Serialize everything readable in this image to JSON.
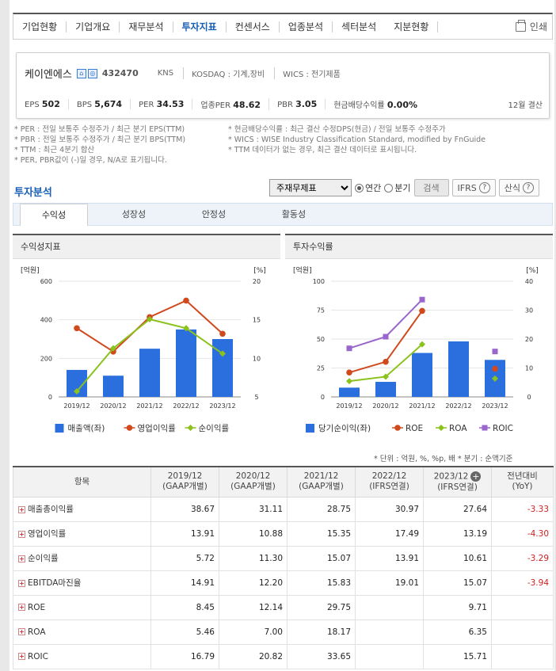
{
  "nav": {
    "items": [
      "기업현황",
      "기업개요",
      "재무분석",
      "투자지표",
      "컨센서스",
      "업종분석",
      "섹터분석",
      "지분현황"
    ],
    "active_index": 3,
    "print_label": "인쇄"
  },
  "company": {
    "name": "케이엔에스",
    "code": "432470",
    "ticker": "KNS",
    "market": "KOSDAQ : 기계,장비",
    "wics": "WICS : 전기제품",
    "metrics": [
      {
        "label": "EPS",
        "value": "502"
      },
      {
        "label": "BPS",
        "value": "5,674"
      },
      {
        "label": "PER",
        "value": "34.53"
      },
      {
        "label": "업종PER",
        "value": "48.62"
      },
      {
        "label": "PBR",
        "value": "3.05"
      },
      {
        "label": "현금배당수익률",
        "value": "0.00%"
      }
    ],
    "settle": "12월 결산"
  },
  "notes": {
    "left": [
      "* PER : 전일 보통주 수정주가 / 최근 분기 EPS(TTM)",
      "* PBR : 전일 보통주 수정주가 / 최근 분기 BPS(TTM)",
      "* TTM : 최근 4분기 합산",
      "* PER, PBR값이 (-)일 경우, N/A로 표기됩니다."
    ],
    "right": [
      "* 현금배당수익률 : 최근 결산 수정DPS(현금) / 전일 보통주 수정주가",
      "* WICS : WISE Industry Classification Standard, modified by FnGuide",
      "* TTM 데이터가 없는 경우, 최근 결산 데이터로 표시됩니다."
    ]
  },
  "section": {
    "title": "투자분석",
    "select_value": "주재무제표",
    "radio_annual": "연간",
    "radio_quarter": "분기",
    "search_btn": "검색",
    "ifrs_btn": "IFRS",
    "formula_btn": "산식"
  },
  "tabs": [
    "수익성",
    "성장성",
    "안정성",
    "활동성"
  ],
  "chart1": {
    "title": "수익성지표",
    "left_unit": "[억원]",
    "right_unit": "[%]",
    "legend": [
      "매출액(좌)",
      "영업이익률",
      "순이익률"
    ]
  },
  "chart2": {
    "title": "투자수익률",
    "left_unit": "[억원]",
    "right_unit": "[%]",
    "legend": [
      "당기순이익(좌)",
      "ROE",
      "ROA",
      "ROIC"
    ]
  },
  "chart_data": [
    {
      "type": "bar",
      "title": "수익성지표",
      "categories": [
        "2019/12",
        "2020/12",
        "2021/12",
        "2022/12",
        "2023/12"
      ],
      "left_ylim": [
        0,
        600
      ],
      "left_ticks": [
        "0",
        "200",
        "400",
        "600"
      ],
      "right_ylim": [
        5,
        20
      ],
      "right_ticks": [
        "5",
        "10",
        "15",
        "20"
      ],
      "series": [
        {
          "name": "매출액(좌)",
          "kind": "bar",
          "axis": "left",
          "color": "#2b6fde",
          "values": [
            140,
            110,
            250,
            350,
            300
          ]
        },
        {
          "name": "영업이익률",
          "kind": "line",
          "axis": "right",
          "color": "#d04a1e",
          "values": [
            13.91,
            10.88,
            15.35,
            17.49,
            13.19
          ]
        },
        {
          "name": "순이익률",
          "kind": "line",
          "axis": "right",
          "color": "#8bc21c",
          "values": [
            5.72,
            11.3,
            15.07,
            13.91,
            10.61
          ]
        }
      ]
    },
    {
      "type": "bar",
      "title": "투자수익률",
      "categories": [
        "2019/12",
        "2020/12",
        "2021/12",
        "2022/12",
        "2023/12"
      ],
      "left_ylim": [
        0,
        100
      ],
      "left_ticks": [
        "0",
        "25",
        "50",
        "75",
        "100"
      ],
      "right_ylim": [
        0,
        40
      ],
      "right_ticks": [
        "0",
        "10",
        "20",
        "30",
        "40"
      ],
      "series": [
        {
          "name": "당기순이익(좌)",
          "kind": "bar",
          "axis": "left",
          "color": "#2b6fde",
          "values": [
            8,
            13,
            38,
            48,
            32
          ]
        },
        {
          "name": "ROE",
          "kind": "line",
          "axis": "right",
          "color": "#d04a1e",
          "values": [
            8.45,
            12.14,
            29.75,
            null,
            9.71
          ]
        },
        {
          "name": "ROA",
          "kind": "line",
          "axis": "right",
          "color": "#8bc21c",
          "values": [
            5.46,
            7.0,
            18.17,
            null,
            6.35
          ]
        },
        {
          "name": "ROIC",
          "kind": "line",
          "axis": "right",
          "color": "#9966cc",
          "values": [
            16.79,
            20.82,
            33.65,
            null,
            15.71
          ]
        }
      ]
    }
  ],
  "units_note": "* 단위 : 억원, %, %p, 배        * 분기 : 순액기준",
  "table": {
    "headers": [
      {
        "l1": "항목",
        "l2": ""
      },
      {
        "l1": "2019/12",
        "l2": "(GAAP개별)"
      },
      {
        "l1": "2020/12",
        "l2": "(GAAP개별)"
      },
      {
        "l1": "2021/12",
        "l2": "(GAAP개별)"
      },
      {
        "l1": "2022/12",
        "l2": "(IFRS연결)"
      },
      {
        "l1": "2023/12",
        "l2": "(IFRS연결)"
      },
      {
        "l1": "전년대비",
        "l2": "(YoY)"
      }
    ],
    "rows": [
      {
        "label": "매출총이익률",
        "values": [
          "38.67",
          "31.11",
          "28.75",
          "30.97",
          "27.64",
          "-3.33"
        ]
      },
      {
        "label": "영업이익률",
        "values": [
          "13.91",
          "10.88",
          "15.35",
          "17.49",
          "13.19",
          "-4.30"
        ]
      },
      {
        "label": "순이익률",
        "values": [
          "5.72",
          "11.30",
          "15.07",
          "13.91",
          "10.61",
          "-3.29"
        ]
      },
      {
        "label": "EBITDA마진율",
        "values": [
          "14.91",
          "12.20",
          "15.83",
          "19.01",
          "15.07",
          "-3.94"
        ]
      },
      {
        "label": "ROE",
        "values": [
          "8.45",
          "12.14",
          "29.75",
          "",
          "9.71",
          ""
        ]
      },
      {
        "label": "ROA",
        "values": [
          "5.46",
          "7.00",
          "18.17",
          "",
          "6.35",
          ""
        ]
      },
      {
        "label": "ROIC",
        "values": [
          "16.79",
          "20.82",
          "33.65",
          "",
          "15.71",
          ""
        ]
      }
    ]
  }
}
